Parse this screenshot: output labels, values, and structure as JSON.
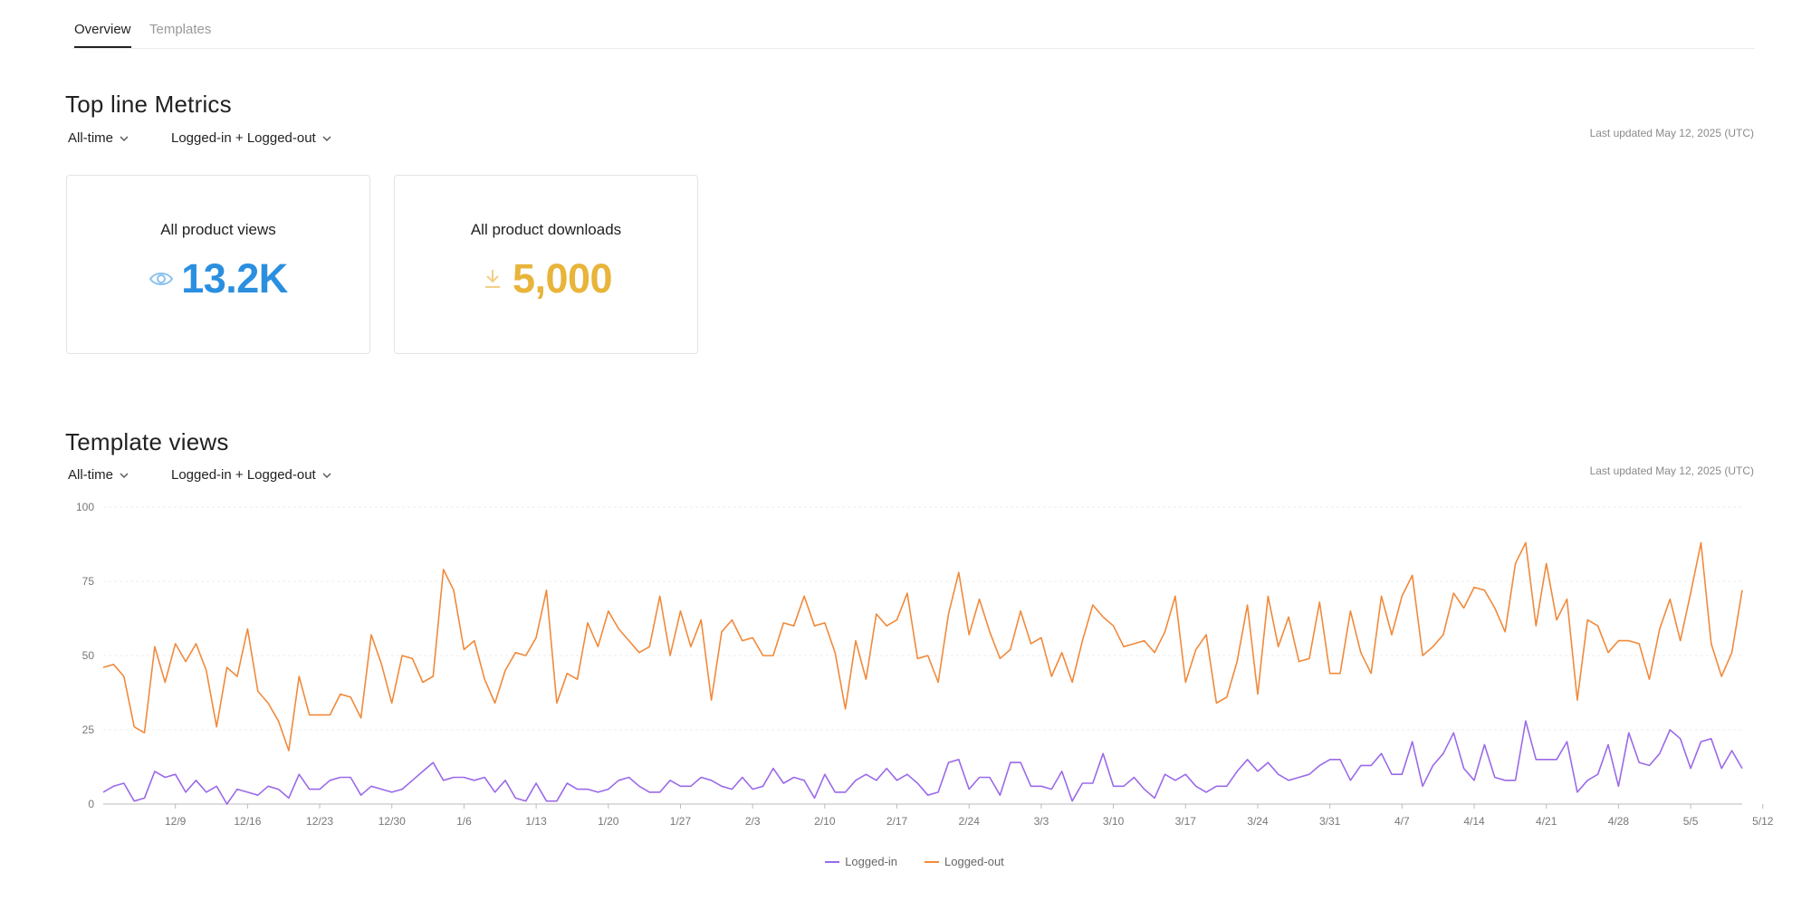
{
  "tabs": [
    {
      "label": "Overview"
    },
    {
      "label": "Templates"
    }
  ],
  "top_metrics": {
    "title": "Top line Metrics",
    "filter_time": "All-time",
    "filter_user": "Logged-in + Logged-out",
    "last_updated": "Last updated May 12, 2025 (UTC)",
    "cards": [
      {
        "label": "All product views",
        "value": "13.2K",
        "icon": "eye-icon",
        "color": "#2b8fe0"
      },
      {
        "label": "All product downloads",
        "value": "5,000",
        "icon": "download-icon",
        "color": "#e8b43a"
      }
    ]
  },
  "template_views": {
    "title": "Template views",
    "filter_time": "All-time",
    "filter_user": "Logged-in + Logged-out",
    "last_updated": "Last updated May 12, 2025 (UTC)"
  },
  "chart_data": {
    "type": "line",
    "ylim": [
      0,
      100
    ],
    "y_ticks": [
      "0",
      "25",
      "50",
      "75",
      "100"
    ],
    "x_tick_labels": [
      "12/9",
      "12/16",
      "12/23",
      "12/30",
      "1/6",
      "1/13",
      "1/20",
      "1/27",
      "2/3",
      "2/10",
      "2/17",
      "2/24",
      "3/3",
      "3/10",
      "3/17",
      "3/24",
      "3/31",
      "4/7",
      "4/14",
      "4/21",
      "4/28",
      "5/5",
      "5/12"
    ],
    "x_tick_day_index": [
      7,
      14,
      21,
      28,
      35,
      42,
      49,
      56,
      63,
      70,
      77,
      84,
      91,
      98,
      105,
      112,
      119,
      126,
      133,
      140,
      147,
      154,
      161
    ],
    "grid": true,
    "legend_placement": "bottom",
    "series": [
      {
        "name": "Logged-in",
        "color": "#9b6ae8",
        "values": [
          4,
          6,
          7,
          1,
          2,
          11,
          9,
          10,
          4,
          8,
          4,
          6,
          0,
          5,
          4,
          3,
          6,
          5,
          2,
          10,
          5,
          5,
          8,
          9,
          9,
          3,
          6,
          5,
          4,
          5,
          8,
          11,
          14,
          8,
          9,
          9,
          8,
          9,
          4,
          8,
          2,
          1,
          7,
          1,
          1,
          7,
          5,
          5,
          4,
          5,
          8,
          9,
          6,
          4,
          4,
          8,
          6,
          6,
          9,
          8,
          6,
          5,
          9,
          5,
          6,
          12,
          7,
          9,
          8,
          2,
          10,
          4,
          4,
          8,
          10,
          8,
          12,
          8,
          10,
          7,
          3,
          4,
          14,
          15,
          5,
          9,
          9,
          3,
          14,
          14,
          6,
          6,
          5,
          11,
          1,
          7,
          7,
          17,
          6,
          6,
          9,
          5,
          2,
          10,
          8,
          10,
          6,
          4,
          6,
          6,
          11,
          15,
          11,
          14,
          10,
          8,
          9,
          10,
          13,
          15,
          15,
          8,
          13,
          13,
          17,
          10,
          10,
          21,
          6,
          13,
          17,
          24,
          12,
          8,
          20,
          9,
          8,
          8,
          28,
          15,
          15,
          15,
          21,
          4,
          8,
          10,
          20,
          6,
          24,
          14,
          13,
          17,
          25,
          22,
          12,
          21,
          22,
          12,
          18,
          12
        ]
      },
      {
        "name": "Logged-out",
        "color": "#f08a3c",
        "values": [
          46,
          47,
          43,
          26,
          24,
          53,
          41,
          54,
          48,
          54,
          45,
          26,
          46,
          43,
          59,
          38,
          34,
          28,
          18,
          43,
          30,
          30,
          30,
          37,
          36,
          29,
          57,
          47,
          34,
          50,
          49,
          41,
          43,
          79,
          72,
          52,
          55,
          42,
          34,
          45,
          51,
          50,
          56,
          72,
          34,
          44,
          42,
          61,
          53,
          65,
          59,
          55,
          51,
          53,
          70,
          50,
          65,
          53,
          62,
          35,
          58,
          62,
          55,
          56,
          50,
          50,
          61,
          60,
          70,
          60,
          61,
          51,
          32,
          55,
          42,
          64,
          60,
          62,
          71,
          49,
          50,
          41,
          64,
          78,
          57,
          69,
          58,
          49,
          52,
          65,
          54,
          56,
          43,
          51,
          41,
          55,
          67,
          63,
          60,
          53,
          54,
          55,
          51,
          58,
          70,
          41,
          52,
          57,
          34,
          36,
          48,
          67,
          37,
          70,
          53,
          63,
          48,
          49,
          68,
          44,
          44,
          65,
          51,
          44,
          70,
          57,
          70,
          77,
          50,
          53,
          57,
          71,
          66,
          73,
          72,
          66,
          58,
          81,
          88,
          60,
          81,
          62,
          69,
          35,
          62,
          60,
          51,
          55,
          55,
          54,
          42,
          59,
          69,
          55,
          71,
          88,
          54,
          43,
          51,
          72
        ]
      }
    ]
  },
  "legend": [
    {
      "label": "Logged-in",
      "color": "#9b6ae8"
    },
    {
      "label": "Logged-out",
      "color": "#f08a3c"
    }
  ]
}
